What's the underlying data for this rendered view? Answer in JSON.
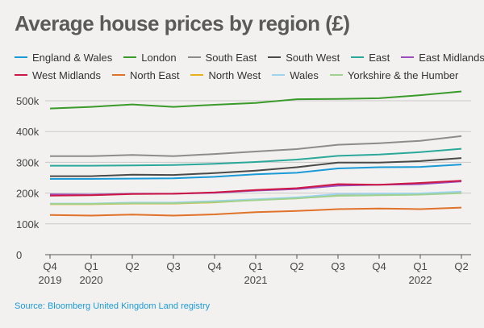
{
  "title": "Average house prices by region (£)",
  "source": "Source: Bloomberg United Kingdom Land registry",
  "chart_data": {
    "type": "line",
    "title": "Average house prices by region (£)",
    "xlabel": "",
    "ylabel": "",
    "ylim": [
      0,
      500000
    ],
    "yticks": [
      {
        "value": 0,
        "label": "0"
      },
      {
        "value": 100000,
        "label": "100k"
      },
      {
        "value": 200000,
        "label": "200k"
      },
      {
        "value": 300000,
        "label": "300k"
      },
      {
        "value": 400000,
        "label": "400k"
      },
      {
        "value": 500000,
        "label": "500k"
      }
    ],
    "categories": [
      "Q4 2019",
      "Q1 2020",
      "Q2 2020",
      "Q3 2020",
      "Q4 2020",
      "Q1 2021",
      "Q2 2021",
      "Q3 2021",
      "Q4 2021",
      "Q1 2022",
      "Q2 2022"
    ],
    "x_tick_labels": [
      {
        "top": "Q4",
        "bottom": "2019"
      },
      {
        "top": "Q1",
        "bottom": "2020"
      },
      {
        "top": "Q2",
        "bottom": ""
      },
      {
        "top": "Q3",
        "bottom": ""
      },
      {
        "top": "Q4",
        "bottom": ""
      },
      {
        "top": "Q1",
        "bottom": "2021"
      },
      {
        "top": "Q2",
        "bottom": ""
      },
      {
        "top": "Q3",
        "bottom": ""
      },
      {
        "top": "Q4",
        "bottom": ""
      },
      {
        "top": "Q1",
        "bottom": "2022"
      },
      {
        "top": "Q2",
        "bottom": ""
      }
    ],
    "grid": true,
    "legend_placement": "top",
    "series": [
      {
        "name": "England & Wales",
        "color": "#1a9bd7",
        "values": [
          246000,
          246000,
          247000,
          248000,
          253000,
          261000,
          266000,
          280000,
          284000,
          285000,
          293000
        ]
      },
      {
        "name": "London",
        "color": "#3a9a2a",
        "values": [
          475000,
          480000,
          488000,
          480000,
          487000,
          493000,
          505000,
          506000,
          508000,
          518000,
          530000
        ]
      },
      {
        "name": "South East",
        "color": "#8c8c8c",
        "values": [
          320000,
          320000,
          324000,
          320000,
          327000,
          335000,
          343000,
          357000,
          362000,
          370000,
          385000
        ]
      },
      {
        "name": "South West",
        "color": "#4a4a4a",
        "values": [
          255000,
          255000,
          260000,
          259000,
          265000,
          273000,
          284000,
          299000,
          299000,
          304000,
          314000
        ]
      },
      {
        "name": "East",
        "color": "#2aa89a",
        "values": [
          289000,
          289000,
          290000,
          291000,
          295000,
          301000,
          309000,
          321000,
          325000,
          333000,
          344000
        ]
      },
      {
        "name": "East Midlands",
        "color": "#9b4dbf",
        "values": [
          196000,
          195000,
          198000,
          198000,
          201000,
          208000,
          213000,
          224000,
          227000,
          229000,
          238000
        ]
      },
      {
        "name": "West Midlands",
        "color": "#cc1845",
        "values": [
          192000,
          193000,
          197000,
          198000,
          202000,
          210000,
          216000,
          229000,
          227000,
          233000,
          240000
        ]
      },
      {
        "name": "North East",
        "color": "#e0722a",
        "values": [
          129000,
          127000,
          130000,
          127000,
          131000,
          138000,
          142000,
          148000,
          150000,
          148000,
          153000
        ]
      },
      {
        "name": "North West",
        "color": "#e8b122",
        "values": [
          164000,
          164000,
          166000,
          166000,
          170000,
          178000,
          183000,
          193000,
          195000,
          196000,
          203000
        ]
      },
      {
        "name": "Wales",
        "color": "#9ed3f0",
        "values": [
          166000,
          166000,
          169000,
          169000,
          174000,
          180000,
          186000,
          197000,
          198000,
          199000,
          205000
        ]
      },
      {
        "name": "Yorkshire & the Humber",
        "color": "#9fd18f",
        "values": [
          165000,
          165000,
          167000,
          167000,
          171000,
          177000,
          183000,
          191000,
          193000,
          195000,
          200000
        ]
      }
    ]
  }
}
